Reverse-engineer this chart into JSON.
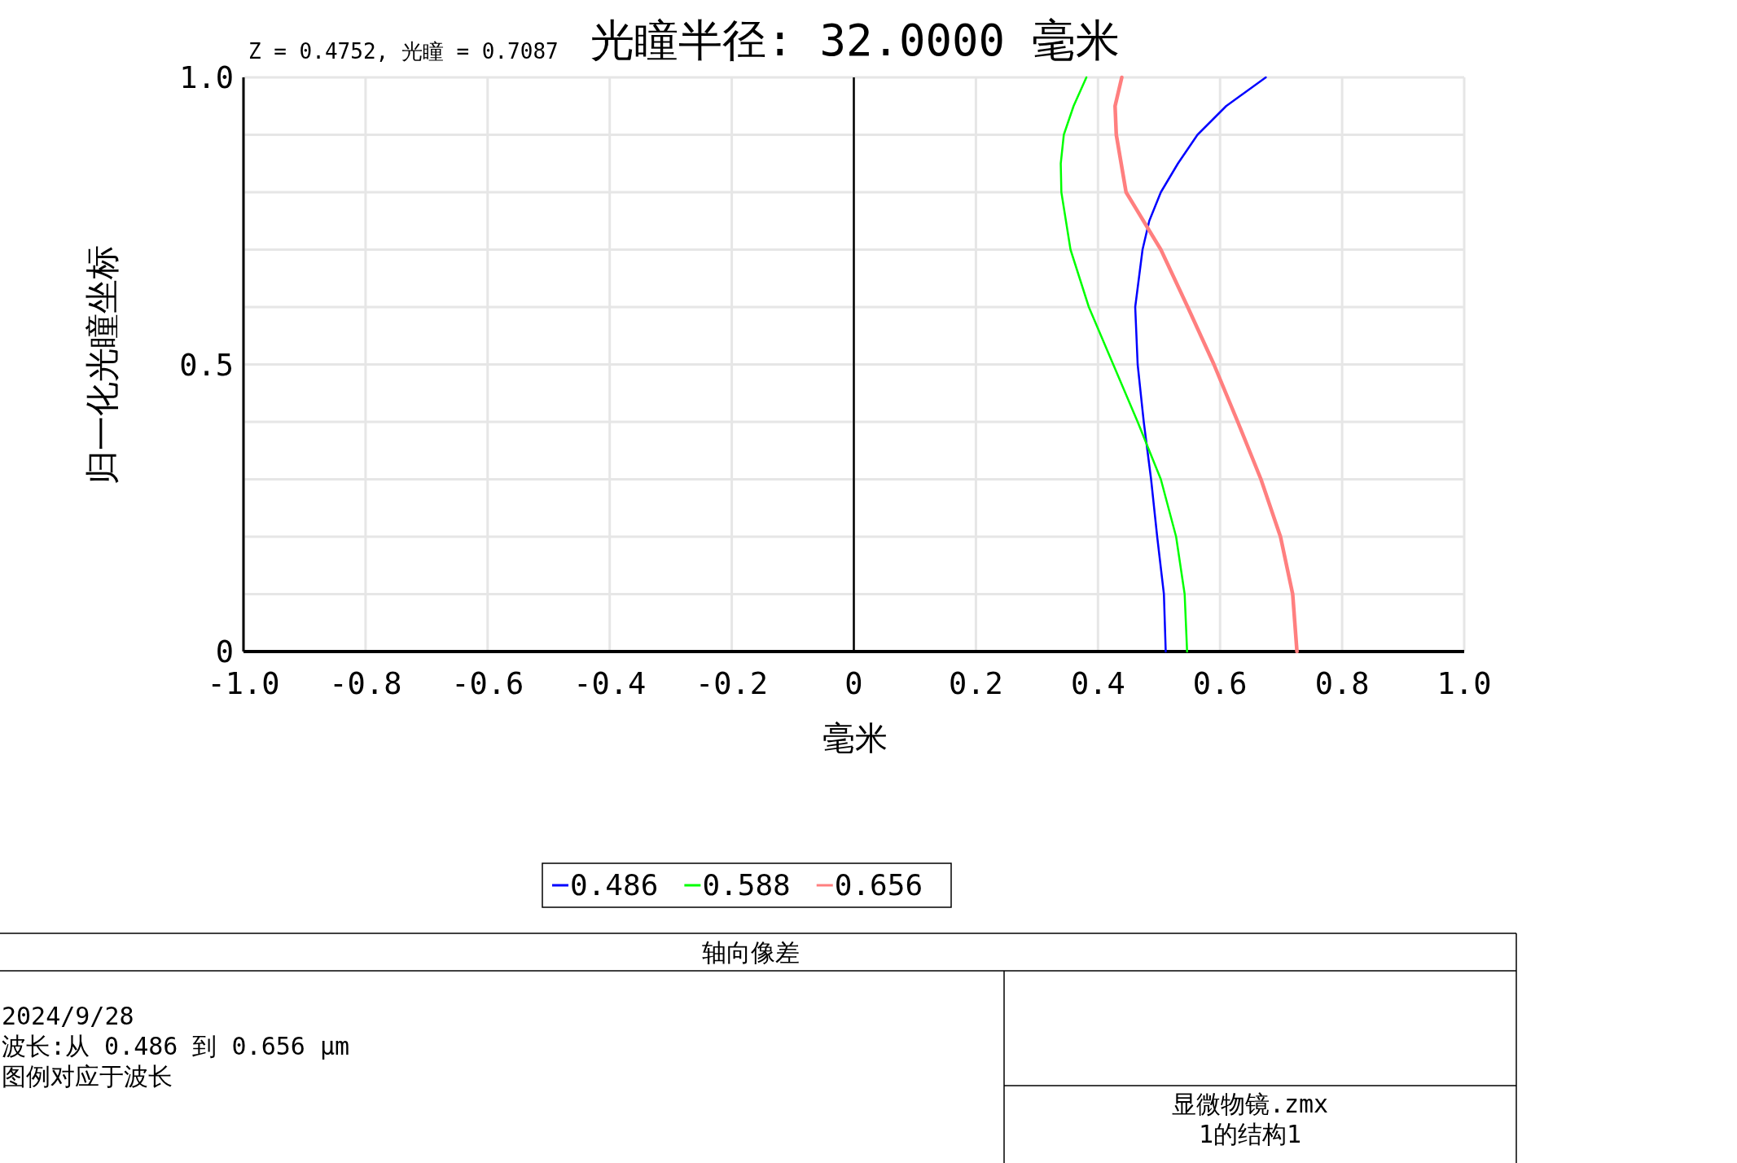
{
  "chart_data": {
    "type": "line",
    "title": "光瞳半径: 32.0000 毫米",
    "xlabel": "毫米",
    "ylabel": "归一化光瞳坐标",
    "xlim": [
      -1.0,
      1.0
    ],
    "ylim": [
      0,
      1.0
    ],
    "xticks": [
      {
        "value": -1.0,
        "label": "-1.0"
      },
      {
        "value": -0.8,
        "label": "-0.8"
      },
      {
        "value": -0.6,
        "label": "-0.6"
      },
      {
        "value": -0.4,
        "label": "-0.4"
      },
      {
        "value": -0.2,
        "label": "-0.2"
      },
      0,
      0.2,
      0.4,
      0.6,
      0.8,
      {
        "value": 1.0,
        "label": "1.0"
      }
    ],
    "yticks": [
      0,
      {
        "value": 0.1,
        "label": null
      },
      {
        "value": 0.2,
        "label": null
      },
      {
        "value": 0.3,
        "label": null
      },
      {
        "value": 0.4,
        "label": null
      },
      0.5,
      {
        "value": 0.6,
        "label": null
      },
      {
        "value": 0.7,
        "label": null
      },
      {
        "value": 0.8,
        "label": null
      },
      {
        "value": 0.9,
        "label": null
      },
      {
        "value": 1.0,
        "label": "1.0"
      }
    ],
    "grid": true,
    "legend": "bottom",
    "ref_lines": [
      {
        "axis": "x",
        "value": 0,
        "color": "#000000"
      }
    ],
    "series": [
      {
        "name": "0.486",
        "color": "#0000ff",
        "x": [
          0.511,
          0.508,
          0.497,
          0.487,
          0.475,
          0.465,
          0.461,
          0.473,
          0.484,
          0.503,
          0.531,
          0.563,
          0.61,
          0.675
        ],
        "values": [
          0,
          0.1,
          0.2,
          0.3,
          0.4,
          0.5,
          0.6,
          0.7,
          0.75,
          0.8,
          0.85,
          0.9,
          0.95,
          1.0
        ]
      },
      {
        "name": "0.588",
        "color": "#00ff00",
        "x": [
          0.546,
          0.542,
          0.528,
          0.503,
          0.465,
          0.425,
          0.385,
          0.355,
          0.34,
          0.339,
          0.344,
          0.36,
          0.381
        ],
        "values": [
          0,
          0.1,
          0.2,
          0.3,
          0.4,
          0.5,
          0.6,
          0.7,
          0.8,
          0.85,
          0.9,
          0.95,
          1.0
        ]
      },
      {
        "name": "0.656",
        "color": "#ff7f7f",
        "x": [
          0.726,
          0.719,
          0.699,
          0.667,
          0.629,
          0.59,
          0.547,
          0.503,
          0.446,
          0.43,
          0.428,
          0.439
        ],
        "values": [
          0,
          0.1,
          0.2,
          0.3,
          0.4,
          0.5,
          0.6,
          0.7,
          0.8,
          0.9,
          0.95,
          1.0
        ]
      }
    ],
    "annotations": [
      "Z = 0.4752, 光瞳 = 0.7087",
      "轴向像差",
      "2024/9/28",
      "波长:从 0.486 到 0.656 μm",
      "图例对应于波长",
      "显微物镜.zmx",
      "1的结构1"
    ]
  }
}
